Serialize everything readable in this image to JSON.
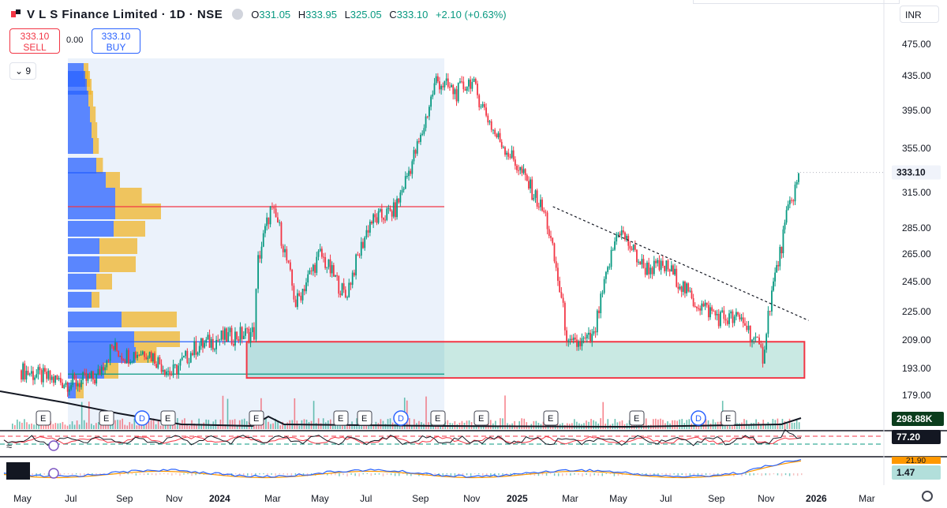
{
  "header": {
    "title": "V L S Finance Limited · 1D · NSE",
    "open_label": "O",
    "open": "331.05",
    "high_label": "H",
    "high": "333.95",
    "low_label": "L",
    "low": "325.05",
    "close_label": "C",
    "close": "333.10",
    "change": "+2.10 (+0.63%)"
  },
  "trade": {
    "sell_price": "333.10",
    "sell_label": "SELL",
    "spread": "0.00",
    "buy_price": "333.10",
    "buy_label": "BUY"
  },
  "indicator_count": "9",
  "currency": "INR",
  "chart_data": {
    "type": "candlestick",
    "y_ticks": [
      475,
      435,
      395,
      355,
      315,
      285,
      265,
      245,
      225,
      209,
      193,
      179
    ],
    "x_ticks": [
      "May",
      "Jul",
      "Sep",
      "Nov",
      "2024",
      "Mar",
      "May",
      "Jul",
      "Sep",
      "Nov",
      "2025",
      "Mar",
      "May",
      "Jul",
      "Sep",
      "Nov",
      "2026",
      "Mar"
    ],
    "last_price": "333.10",
    "volume_label": "298.88K",
    "rsi_label": "77.20",
    "macd_label_top": "21.90",
    "macd_label": "1.47",
    "price_path": [
      [
        "2023-05-01",
        192
      ],
      [
        "2023-06-01",
        188
      ],
      [
        "2023-07-01",
        185
      ],
      [
        "2023-08-01",
        188
      ],
      [
        "2023-08-20",
        205
      ],
      [
        "2023-09-05",
        200
      ],
      [
        "2023-10-01",
        203
      ],
      [
        "2023-11-01",
        190
      ],
      [
        "2023-12-01",
        205
      ],
      [
        "2024-01-01",
        210
      ],
      [
        "2024-02-10",
        213
      ],
      [
        "2024-02-15",
        260
      ],
      [
        "2024-03-01",
        300
      ],
      [
        "2024-03-10",
        290
      ],
      [
        "2024-04-01",
        230
      ],
      [
        "2024-05-01",
        265
      ],
      [
        "2024-06-01",
        235
      ],
      [
        "2024-07-01",
        290
      ],
      [
        "2024-08-01",
        300
      ],
      [
        "2024-09-01",
        365
      ],
      [
        "2024-09-20",
        430
      ],
      [
        "2024-10-15",
        415
      ],
      [
        "2024-11-01",
        430
      ],
      [
        "2024-12-01",
        370
      ],
      [
        "2025-01-01",
        335
      ],
      [
        "2025-02-01",
        295
      ],
      [
        "2025-03-01",
        205
      ],
      [
        "2025-04-01",
        210
      ],
      [
        "2025-05-01",
        285
      ],
      [
        "2025-06-01",
        255
      ],
      [
        "2025-07-01",
        255
      ],
      [
        "2025-08-01",
        232
      ],
      [
        "2025-09-01",
        222
      ],
      [
        "2025-10-01",
        220
      ],
      [
        "2025-10-25",
        200
      ],
      [
        "2025-11-05",
        238
      ],
      [
        "2025-11-15",
        265
      ],
      [
        "2025-11-25",
        300
      ],
      [
        "2025-12-10",
        333
      ]
    ],
    "trendline": [
      [
        "2025-02-10",
        303
      ],
      [
        "2025-12-20",
        220
      ]
    ],
    "support_zone": {
      "from": "2024-02-01",
      "to": "2025-12-15",
      "low": 188,
      "high": 208
    },
    "horizontal_levels": [
      {
        "value": 303,
        "color": "#f23645"
      },
      {
        "value": 208,
        "color": "#2962ff"
      },
      {
        "value": 190,
        "color": "#089981"
      }
    ],
    "events": [
      "E",
      "E",
      "D",
      "E",
      "E",
      "E",
      "E",
      "D",
      "E",
      "E",
      "E",
      "E",
      "D",
      "E"
    ],
    "colors": {
      "up": "#089981",
      "down": "#f23645",
      "volume_profile_up": "#2962ff",
      "volume_profile_down": "#f0b429"
    }
  }
}
